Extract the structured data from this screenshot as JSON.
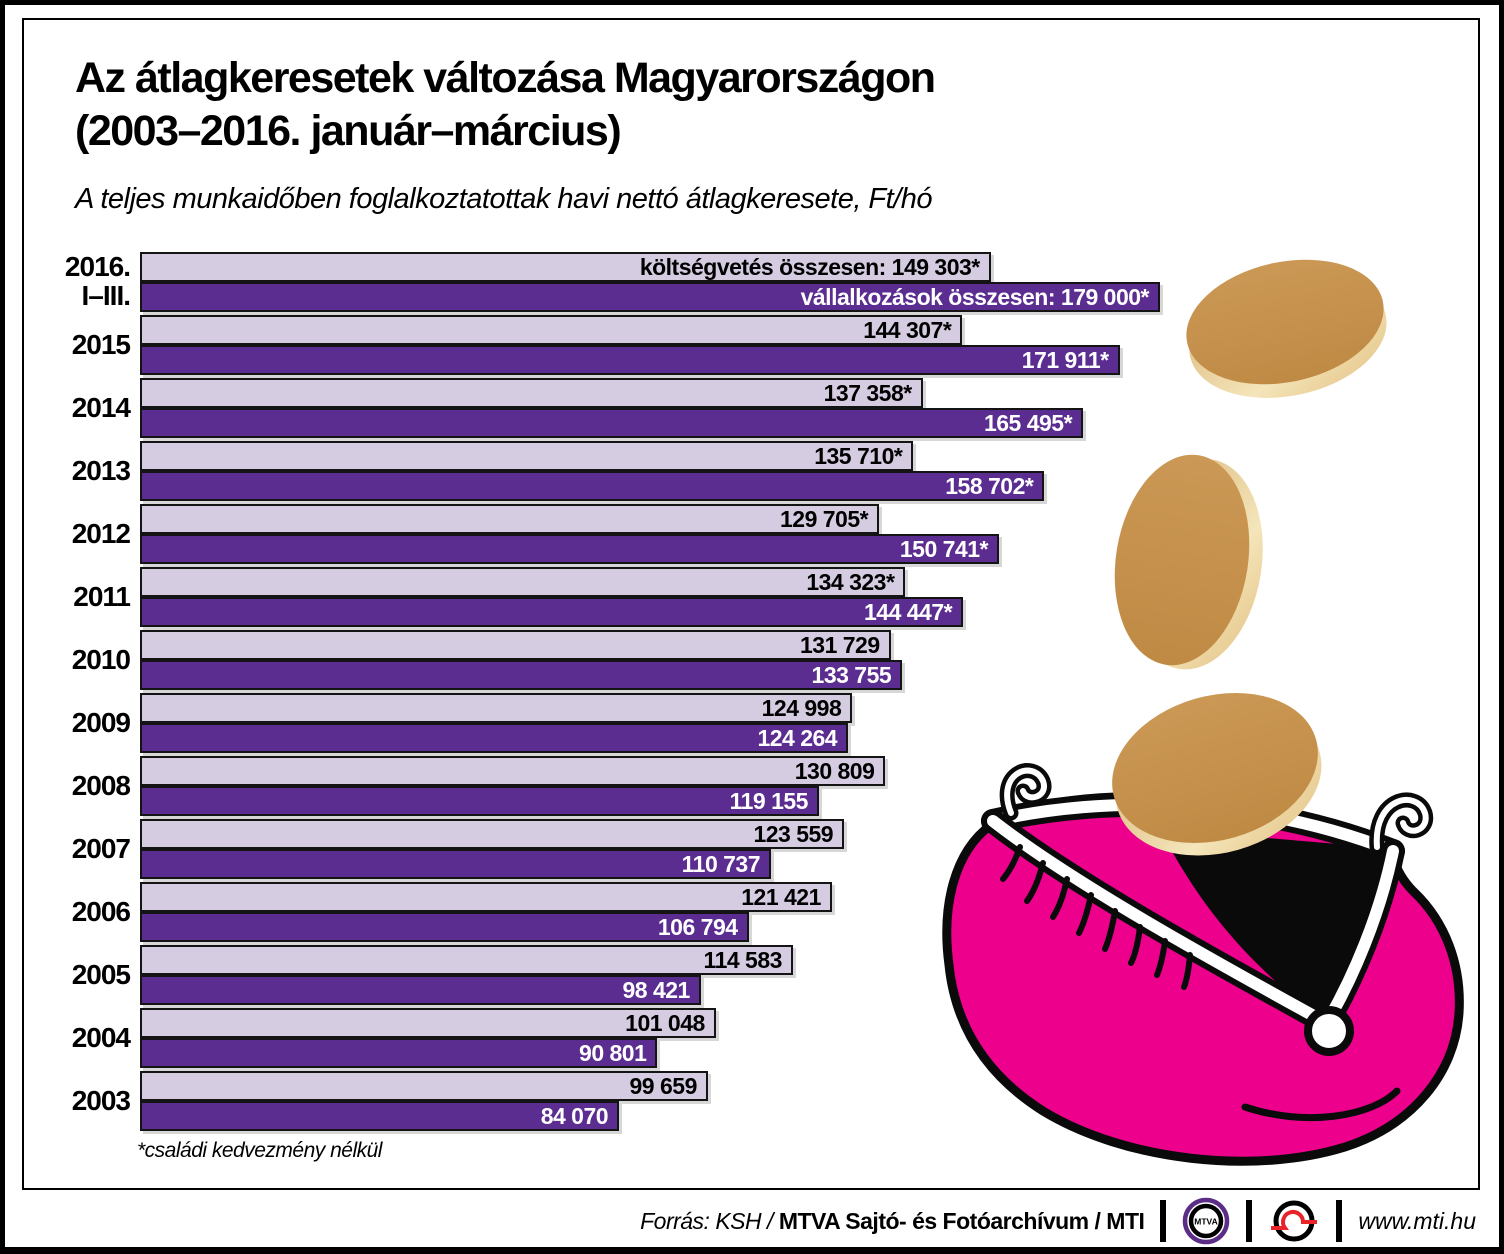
{
  "header": {
    "title_line1": "Az átlagkeresetek változása Magyarországon",
    "title_line2": "(2003–2016. január–március)",
    "subtitle": "A teljes munkaidőben foglalkoztatottak havi nettó átlagkeresete, Ft/hó"
  },
  "chart_data": {
    "type": "bar",
    "orientation": "horizontal",
    "unit": "Ft/hó",
    "max_value": 179000,
    "legend_position": "inside-first-bars",
    "categories": [
      "2016. I–III.",
      "2015",
      "2014",
      "2013",
      "2012",
      "2011",
      "2010",
      "2009",
      "2008",
      "2007",
      "2006",
      "2005",
      "2004",
      "2003"
    ],
    "series": [
      {
        "name": "költségvetés összesen",
        "color": "#d5cce2",
        "values": [
          149303,
          144307,
          137358,
          135710,
          129705,
          134323,
          131729,
          124998,
          130809,
          123559,
          121421,
          114583,
          101048,
          99659
        ]
      },
      {
        "name": "vállalkozások összesen",
        "color": "#5c2d91",
        "values": [
          179000,
          171911,
          165495,
          158702,
          150741,
          144447,
          133755,
          124264,
          119155,
          110737,
          106794,
          98421,
          90801,
          84070
        ]
      }
    ],
    "rows": [
      {
        "year_line1": "2016.",
        "year_line2": "I–III.",
        "light_value": 149303,
        "light_label": "költségvetés összesen: 149 303*",
        "dark_value": 179000,
        "dark_label": "vállalkozások összesen: 179 000*"
      },
      {
        "year_line1": "2015",
        "year_line2": "",
        "light_value": 144307,
        "light_label": "144 307*",
        "dark_value": 171911,
        "dark_label": "171 911*"
      },
      {
        "year_line1": "2014",
        "year_line2": "",
        "light_value": 137358,
        "light_label": "137 358*",
        "dark_value": 165495,
        "dark_label": "165 495*"
      },
      {
        "year_line1": "2013",
        "year_line2": "",
        "light_value": 135710,
        "light_label": "135 710*",
        "dark_value": 158702,
        "dark_label": "158 702*"
      },
      {
        "year_line1": "2012",
        "year_line2": "",
        "light_value": 129705,
        "light_label": "129 705*",
        "dark_value": 150741,
        "dark_label": "150 741*"
      },
      {
        "year_line1": "2011",
        "year_line2": "",
        "light_value": 134323,
        "light_label": "134 323*",
        "dark_value": 144447,
        "dark_label": "144 447*"
      },
      {
        "year_line1": "2010",
        "year_line2": "",
        "light_value": 131729,
        "light_label": "131 729",
        "dark_value": 133755,
        "dark_label": "133 755"
      },
      {
        "year_line1": "2009",
        "year_line2": "",
        "light_value": 124998,
        "light_label": "124 998",
        "dark_value": 124264,
        "dark_label": "124 264"
      },
      {
        "year_line1": "2008",
        "year_line2": "",
        "light_value": 130809,
        "light_label": "130 809",
        "dark_value": 119155,
        "dark_label": "119 155"
      },
      {
        "year_line1": "2007",
        "year_line2": "",
        "light_value": 123559,
        "light_label": "123 559",
        "dark_value": 110737,
        "dark_label": "110 737"
      },
      {
        "year_line1": "2006",
        "year_line2": "",
        "light_value": 121421,
        "light_label": "121 421",
        "dark_value": 106794,
        "dark_label": "106 794"
      },
      {
        "year_line1": "2005",
        "year_line2": "",
        "light_value": 114583,
        "light_label": "114 583",
        "dark_value": 98421,
        "dark_label": "98 421"
      },
      {
        "year_line1": "2004",
        "year_line2": "",
        "light_value": 101048,
        "light_label": "101 048",
        "dark_value": 90801,
        "dark_label": "90 801"
      },
      {
        "year_line1": "2003",
        "year_line2": "",
        "light_value": 99659,
        "light_label": "99 659",
        "dark_value": 84070,
        "dark_label": "84 070"
      }
    ],
    "footnote": "*családi kedvezmény nélkül"
  },
  "illustration": {
    "purse_color": "#ec008c",
    "coin_color": "#c6924d",
    "coin_edge_color": "#f2e2b4",
    "description": "pink coin purse with gold coins falling in"
  },
  "footer": {
    "source_italic": "Forrás: KSH /",
    "source_bold": "MTVA Sajtó- és Fotóarchívum / MTI",
    "mtva_logo_text": "MTVA",
    "website": "www.mti.hu",
    "mtva_ring_color": "#5b2d86",
    "mti_red_color": "#e8232a"
  }
}
